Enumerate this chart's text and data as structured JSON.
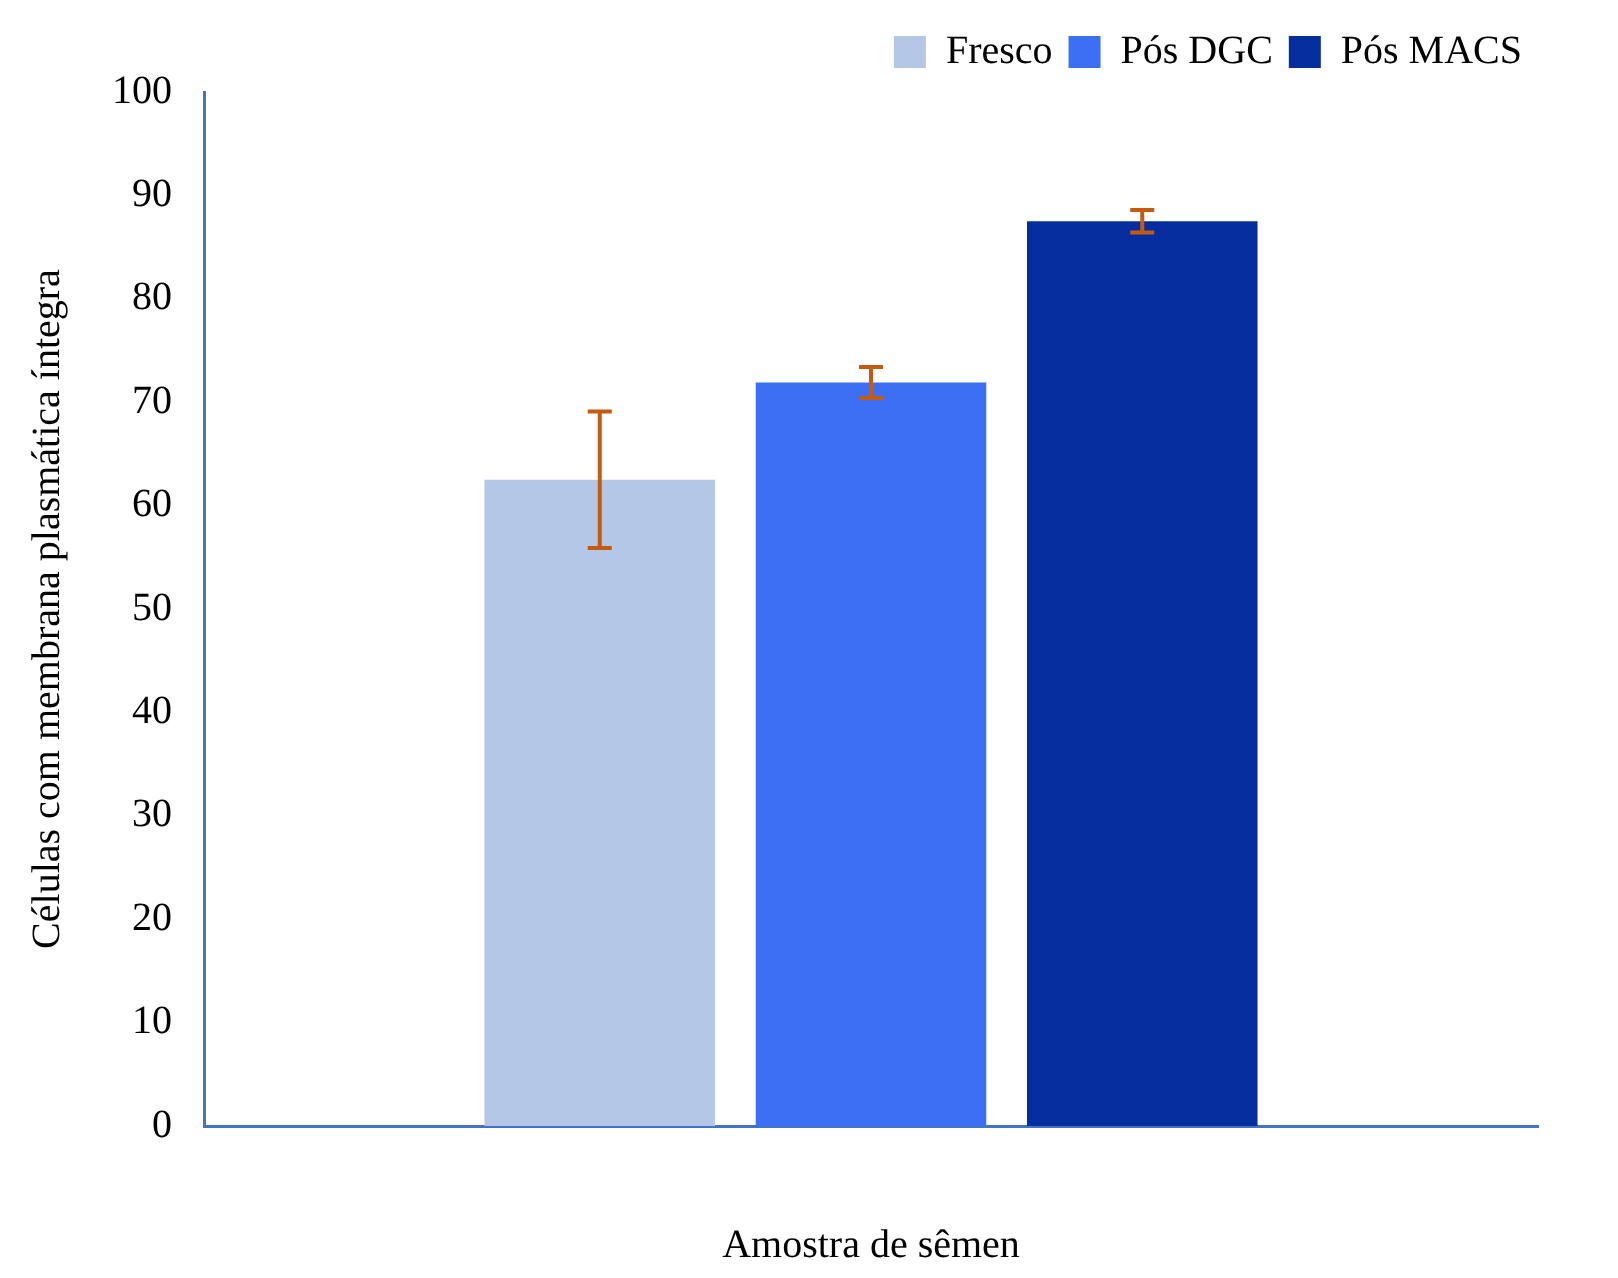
{
  "chart_data": {
    "type": "bar",
    "xlabel": "Amostra de sêmen",
    "ylabel": "Células com membrana plasmática íntegra",
    "categories": [
      null
    ],
    "series": [
      {
        "name": "Fresco",
        "color": "#b4c7e7",
        "values": [
          62.5
        ],
        "errors": [
          6.6
        ]
      },
      {
        "name": "Pós DGC",
        "color": "#3d6ff5",
        "values": [
          71.9
        ],
        "errors": [
          1.5
        ]
      },
      {
        "name": "Pós MACS",
        "color": "#062e9e",
        "values": [
          87.5
        ],
        "errors": [
          1.1
        ]
      }
    ],
    "ylim": [
      0,
      100
    ],
    "yticks": [
      0,
      10,
      20,
      30,
      40,
      50,
      60,
      70,
      80,
      90,
      100
    ],
    "grid": false,
    "legend": "top right"
  }
}
